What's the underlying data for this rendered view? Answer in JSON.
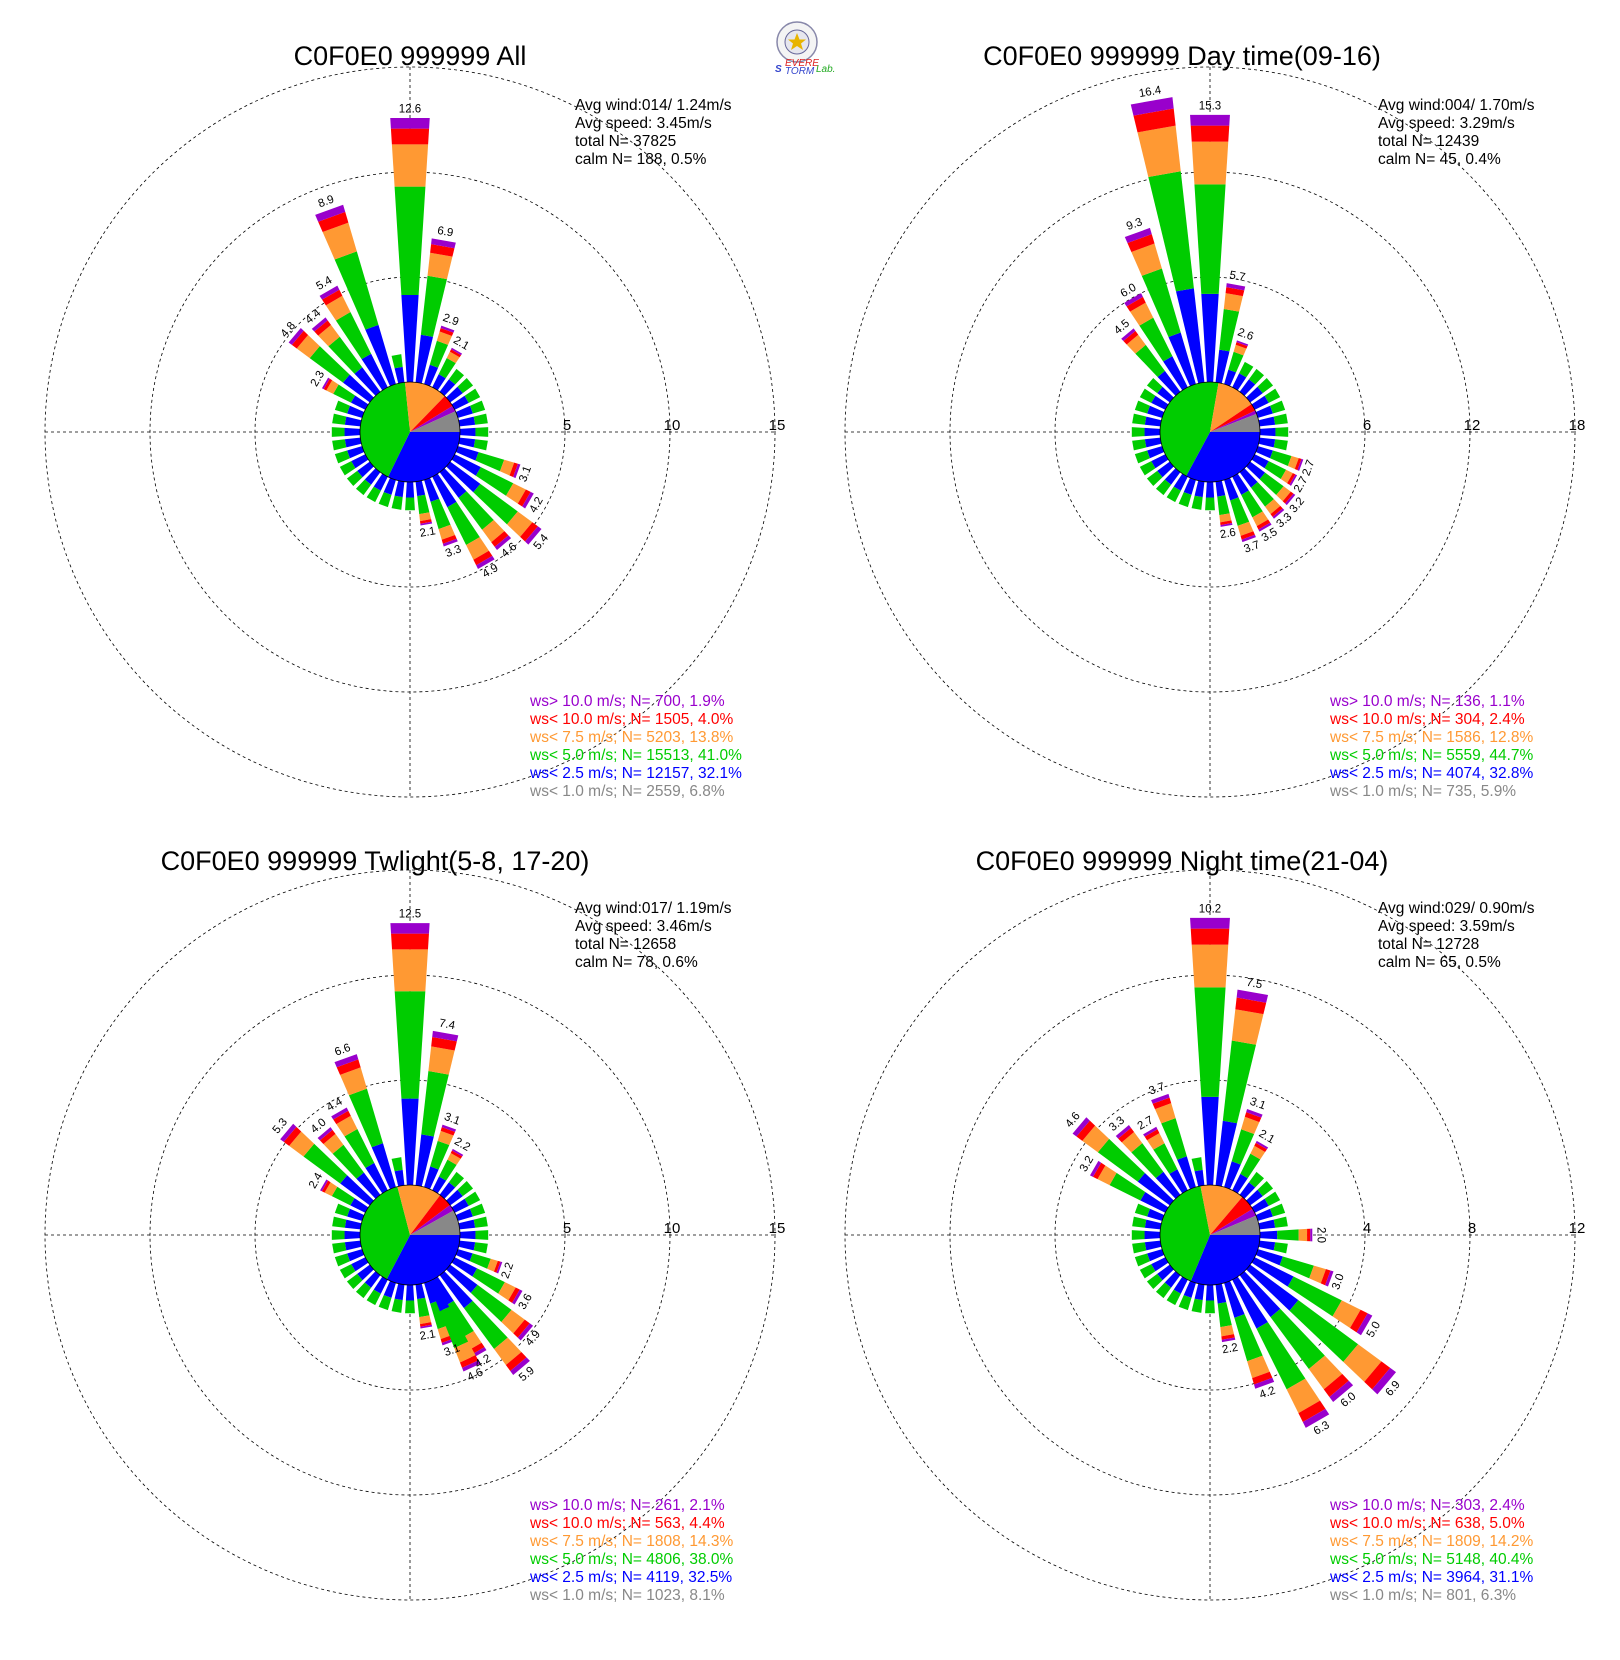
{
  "logo": {
    "text_s": "S",
    "text_severe": "EVERE",
    "text_storm": "TORM",
    "text_lab": "Lab."
  },
  "colors": {
    "purple": "#9900cc",
    "red": "#ff0000",
    "orange": "#ff9933",
    "green": "#00cc00",
    "blue": "#0000ff",
    "gray": "#888888",
    "grid": "#000000"
  },
  "chart_data": [
    {
      "type": "wind-rose",
      "title": "C0F0E0 999999 All",
      "stats": [
        "Avg wind:014/ 1.24m/s",
        "Avg speed: 3.45m/s",
        "total N=      37825",
        "calm N=    188,   0.5%"
      ],
      "rlim": [
        0,
        15
      ],
      "ring_values": [
        5,
        10,
        15
      ],
      "ring_labels": [
        "5",
        "10",
        "15"
      ],
      "grid": true,
      "direction_step_deg": 10,
      "pie": [
        32.1,
        41.0,
        13.8,
        4.0,
        1.9,
        6.8
      ],
      "legend": [
        {
          "label": "ws> 10.0 m/s; N=   700,  1.9%",
          "color": "#9900cc"
        },
        {
          "label": "ws< 10.0 m/s; N=  1505,  4.0%",
          "color": "#ff0000"
        },
        {
          "label": "ws<  7.5 m/s; N=  5203, 13.8%",
          "color": "#ff9933"
        },
        {
          "label": "ws<  5.0 m/s; N= 15513, 41.0%",
          "color": "#00cc00"
        },
        {
          "label": "ws<  2.5 m/s; N= 12157, 32.1%",
          "color": "#0000ff"
        },
        {
          "label": "ws<  1.0 m/s; N=  2559,  6.8%",
          "color": "#888888"
        }
      ],
      "bar_labels": [
        {
          "dir": 0,
          "text": "12.6",
          "value": 12.6
        },
        {
          "dir": 10,
          "text": "6.9",
          "value": 6.9
        },
        {
          "dir": 20,
          "text": "2.9",
          "value": 2.9
        },
        {
          "dir": 30,
          "text": "2.1",
          "value": 2.1
        },
        {
          "dir": 110,
          "text": "3.1",
          "value": 3.1
        },
        {
          "dir": 120,
          "text": "4.2",
          "value": 4.2
        },
        {
          "dir": 130,
          "text": "5.4",
          "value": 5.4
        },
        {
          "dir": 140,
          "text": "4.6",
          "value": 4.6
        },
        {
          "dir": 150,
          "text": "4.9",
          "value": 4.9
        },
        {
          "dir": 160,
          "text": "3.3",
          "value": 3.3
        },
        {
          "dir": 170,
          "text": "2.1",
          "value": 2.1
        },
        {
          "dir": 300,
          "text": "2.3",
          "value": 2.3
        },
        {
          "dir": 310,
          "text": "4.8",
          "value": 4.8
        },
        {
          "dir": 320,
          "text": "4.4",
          "value": 4.4
        },
        {
          "dir": 330,
          "text": "5.4",
          "value": 5.4
        },
        {
          "dir": 340,
          "text": "8.9",
          "value": 8.9
        }
      ]
    },
    {
      "type": "wind-rose",
      "title": "C0F0E0 999999 Day time(09-16)",
      "stats": [
        "Avg wind:004/ 1.70m/s",
        "Avg speed: 3.29m/s",
        "total N=      12439",
        "calm N=      45,   0.4%"
      ],
      "rlim": [
        0,
        18
      ],
      "ring_values": [
        6,
        12,
        18
      ],
      "ring_labels": [
        "6",
        "12",
        "18"
      ],
      "grid": true,
      "direction_step_deg": 10,
      "pie": [
        32.8,
        44.7,
        12.8,
        2.4,
        1.1,
        5.9
      ],
      "legend": [
        {
          "label": "ws> 10.0 m/s; N=   136,  1.1%",
          "color": "#9900cc"
        },
        {
          "label": "ws< 10.0 m/s; N=   304,  2.4%",
          "color": "#ff0000"
        },
        {
          "label": "ws<  7.5 m/s; N=  1586, 12.8%",
          "color": "#ff9933"
        },
        {
          "label": "ws<  5.0 m/s; N=  5559, 44.7%",
          "color": "#00cc00"
        },
        {
          "label": "ws<  2.5 m/s; N=  4074, 32.8%",
          "color": "#0000ff"
        },
        {
          "label": "ws<  1.0 m/s; N=   735,  5.9%",
          "color": "#888888"
        }
      ],
      "bar_labels": [
        {
          "dir": 0,
          "text": "15.3",
          "value": 15.3
        },
        {
          "dir": 10,
          "text": "5.7",
          "value": 5.7
        },
        {
          "dir": 20,
          "text": "2.6",
          "value": 2.6
        },
        {
          "dir": 110,
          "text": "2.7",
          "value": 2.7
        },
        {
          "dir": 120,
          "text": "2.7",
          "value": 2.7
        },
        {
          "dir": 130,
          "text": "3.2",
          "value": 3.2
        },
        {
          "dir": 140,
          "text": "3.3",
          "value": 3.3
        },
        {
          "dir": 150,
          "text": "3.5",
          "value": 3.5
        },
        {
          "dir": 160,
          "text": "3.7",
          "value": 3.7
        },
        {
          "dir": 170,
          "text": "2.6",
          "value": 2.6
        },
        {
          "dir": 320,
          "text": "4.5",
          "value": 4.5
        },
        {
          "dir": 330,
          "text": "6.0",
          "value": 6.0
        },
        {
          "dir": 340,
          "text": "9.3",
          "value": 9.3
        },
        {
          "dir": 350,
          "text": "16.4",
          "value": 16.4
        }
      ]
    },
    {
      "type": "wind-rose",
      "title": "C0F0E0 999999 Twlight(5-8, 17-20)",
      "stats": [
        "Avg wind:017/ 1.19m/s",
        "Avg speed: 3.46m/s",
        "total N=      12658",
        "calm N=      78,   0.6%"
      ],
      "rlim": [
        0,
        15
      ],
      "ring_values": [
        5,
        10,
        15
      ],
      "ring_labels": [
        "5",
        "10",
        "15"
      ],
      "grid": true,
      "direction_step_deg": 10,
      "pie": [
        32.5,
        38.0,
        14.3,
        4.4,
        2.1,
        8.1
      ],
      "legend": [
        {
          "label": "ws> 10.0 m/s; N=   261,  2.1%",
          "color": "#9900cc"
        },
        {
          "label": "ws< 10.0 m/s; N=   563,  4.4%",
          "color": "#ff0000"
        },
        {
          "label": "ws<  7.5 m/s; N=  1808, 14.3%",
          "color": "#ff9933"
        },
        {
          "label": "ws<  5.0 m/s; N=  4806, 38.0%",
          "color": "#00cc00"
        },
        {
          "label": "ws<  2.5 m/s; N=  4119, 32.5%",
          "color": "#0000ff"
        },
        {
          "label": "ws<  1.0 m/s; N=  1023,  8.1%",
          "color": "#888888"
        }
      ],
      "bar_labels": [
        {
          "dir": 0,
          "text": "12.5",
          "value": 12.5
        },
        {
          "dir": 10,
          "text": "7.4",
          "value": 7.4
        },
        {
          "dir": 20,
          "text": "3.1",
          "value": 3.1
        },
        {
          "dir": 30,
          "text": "2.2",
          "value": 2.2
        },
        {
          "dir": 110,
          "text": "2.2",
          "value": 2.2
        },
        {
          "dir": 120,
          "text": "3.6",
          "value": 3.6
        },
        {
          "dir": 130,
          "text": "4.9",
          "value": 4.9
        },
        {
          "dir": 140,
          "text": "5.9",
          "value": 5.9
        },
        {
          "dir": 150,
          "text": "4.2",
          "value": 4.2
        },
        {
          "dir": 155,
          "text": "4.6",
          "value": 4.6
        },
        {
          "dir": 160,
          "text": "3.1",
          "value": 3.1
        },
        {
          "dir": 170,
          "text": "2.1",
          "value": 2.1
        },
        {
          "dir": 300,
          "text": "2.4",
          "value": 2.4
        },
        {
          "dir": 310,
          "text": "5.3",
          "value": 5.3
        },
        {
          "dir": 320,
          "text": "4.0",
          "value": 4.0
        },
        {
          "dir": 330,
          "text": "4.4",
          "value": 4.4
        },
        {
          "dir": 340,
          "text": "6.6",
          "value": 6.6
        }
      ]
    },
    {
      "type": "wind-rose",
      "title": "C0F0E0 999999 Night time(21-04)",
      "stats": [
        "Avg wind:029/ 0.90m/s",
        "Avg speed: 3.59m/s",
        "total N=      12728",
        "calm N=      65,   0.5%"
      ],
      "rlim": [
        0,
        12
      ],
      "ring_values": [
        4,
        8,
        12
      ],
      "ring_labels": [
        "4",
        "8",
        "12"
      ],
      "grid": true,
      "direction_step_deg": 10,
      "pie": [
        31.1,
        40.4,
        14.2,
        5.0,
        2.4,
        6.3
      ],
      "legend": [
        {
          "label": "ws> 10.0 m/s; N=   303,  2.4%",
          "color": "#9900cc"
        },
        {
          "label": "ws< 10.0 m/s; N=   638,  5.0%",
          "color": "#ff0000"
        },
        {
          "label": "ws<  7.5 m/s; N=  1809, 14.2%",
          "color": "#ff9933"
        },
        {
          "label": "ws<  5.0 m/s; N=  5148, 40.4%",
          "color": "#00cc00"
        },
        {
          "label": "ws<  2.5 m/s; N=  3964, 31.1%",
          "color": "#0000ff"
        },
        {
          "label": "ws<  1.0 m/s; N=   801,  6.3%",
          "color": "#888888"
        }
      ],
      "bar_labels": [
        {
          "dir": 0,
          "text": "10.2",
          "value": 10.2
        },
        {
          "dir": 10,
          "text": "7.5",
          "value": 7.5
        },
        {
          "dir": 20,
          "text": "3.1",
          "value": 3.1
        },
        {
          "dir": 30,
          "text": "2.1",
          "value": 2.1
        },
        {
          "dir": 90,
          "text": "2.0",
          "value": 2.0
        },
        {
          "dir": 110,
          "text": "3.0",
          "value": 3.0
        },
        {
          "dir": 120,
          "text": "5.0",
          "value": 5.0
        },
        {
          "dir": 130,
          "text": "6.9",
          "value": 6.9
        },
        {
          "dir": 140,
          "text": "6.0",
          "value": 6.0
        },
        {
          "dir": 150,
          "text": "6.3",
          "value": 6.3
        },
        {
          "dir": 160,
          "text": "4.2",
          "value": 4.2
        },
        {
          "dir": 170,
          "text": "2.2",
          "value": 2.2
        },
        {
          "dir": 300,
          "text": "3.2",
          "value": 3.2
        },
        {
          "dir": 310,
          "text": "4.6",
          "value": 4.6
        },
        {
          "dir": 320,
          "text": "3.3",
          "value": 3.3
        },
        {
          "dir": 330,
          "text": "2.7",
          "value": 2.7
        },
        {
          "dir": 340,
          "text": "3.7",
          "value": 3.7
        }
      ]
    }
  ]
}
